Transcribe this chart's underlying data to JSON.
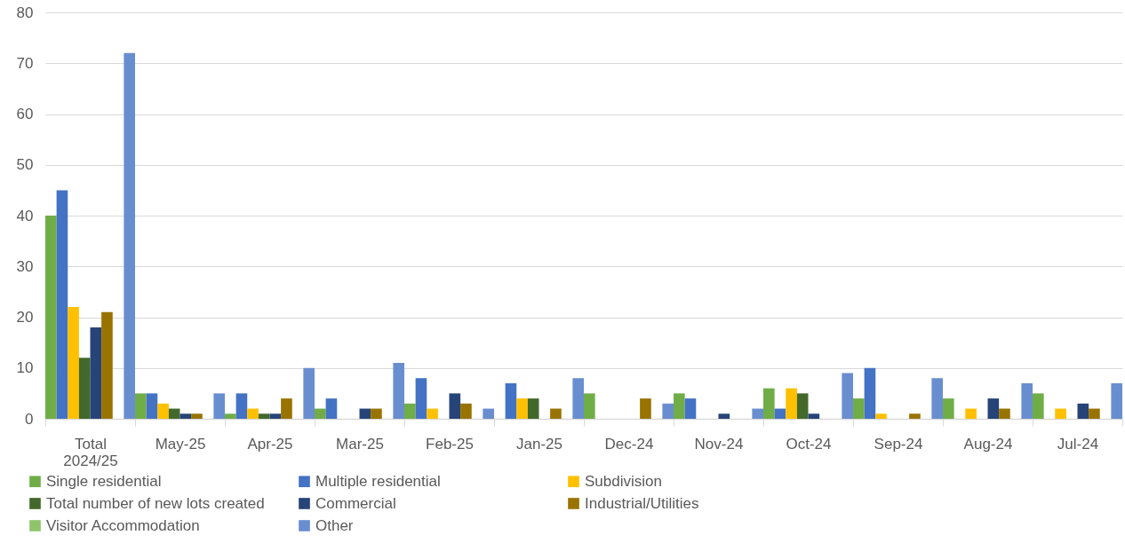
{
  "chart_data": {
    "type": "bar",
    "categories": [
      "Total 2024/25",
      "May-25",
      "Apr-25",
      "Mar-25",
      "Feb-25",
      "Jan-25",
      "Dec-24",
      "Nov-24",
      "Oct-24",
      "Sep-24",
      "Aug-24",
      "Jul-24"
    ],
    "series": [
      {
        "name": "Single residential",
        "color": "#70ad47",
        "values": [
          40,
          5,
          1,
          2,
          3,
          0,
          5,
          5,
          6,
          4,
          4,
          5
        ]
      },
      {
        "name": "Multiple residential",
        "color": "#4472c4",
        "values": [
          45,
          5,
          5,
          4,
          8,
          7,
          0,
          4,
          2,
          10,
          0,
          0
        ]
      },
      {
        "name": "Subdivision",
        "color": "#ffc000",
        "values": [
          22,
          3,
          2,
          0,
          2,
          4,
          0,
          0,
          6,
          1,
          2,
          2
        ]
      },
      {
        "name": "Total number of new lots created",
        "color": "#43682b",
        "values": [
          12,
          2,
          1,
          0,
          0,
          4,
          0,
          0,
          5,
          0,
          0,
          0
        ]
      },
      {
        "name": "Commercial",
        "color": "#264478",
        "values": [
          18,
          1,
          1,
          2,
          5,
          0,
          0,
          1,
          1,
          0,
          4,
          3
        ]
      },
      {
        "name": "Industrial/Utilities",
        "color": "#997300",
        "values": [
          21,
          1,
          4,
          2,
          3,
          2,
          4,
          0,
          0,
          1,
          2,
          2
        ]
      },
      {
        "name": "Visitor Accommodation",
        "color": "#8fc46a",
        "values": [
          0,
          0,
          0,
          0,
          0,
          0,
          0,
          0,
          0,
          0,
          0,
          0
        ]
      },
      {
        "name": "Other",
        "color": "#698ed0",
        "values": [
          72,
          5,
          10,
          11,
          2,
          8,
          3,
          2,
          9,
          8,
          7,
          7
        ]
      }
    ],
    "ylim": [
      0,
      80
    ],
    "yticks": [
      0,
      10,
      20,
      30,
      40,
      50,
      60,
      70,
      80
    ],
    "grid": "y",
    "legend": "bottom"
  }
}
